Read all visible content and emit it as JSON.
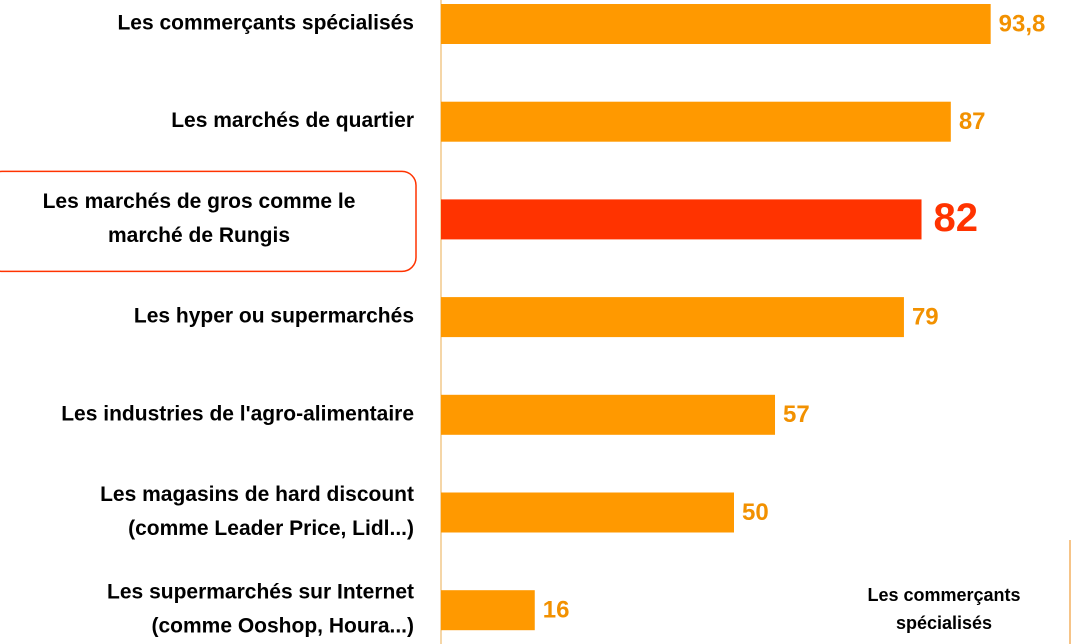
{
  "chart_data": {
    "type": "hbar",
    "categories": [
      [
        "Les commerçants spécialisés"
      ],
      [
        "Les marchés de quartier"
      ],
      [
        "Les marchés de gros comme le",
        "marché de Rungis"
      ],
      [
        "Les hyper ou supermarchés"
      ],
      [
        "Les industries de l'agro-alimentaire"
      ],
      [
        "Les magasins de hard discount",
        "(comme Leader Price, Lidl...)"
      ],
      [
        "Les supermarchés sur Internet",
        "(comme Ooshop, Houra...)"
      ]
    ],
    "values": [
      93.8,
      87,
      82,
      79,
      57,
      50,
      16
    ],
    "value_labels": [
      "93,8",
      "87",
      "82",
      "79",
      "57",
      "50",
      "16"
    ],
    "color": "#ff9900",
    "label_color": "#f29100",
    "highlight": 2,
    "highlight_color": "#ff3300",
    "xlim": [
      0,
      100
    ],
    "annotation": [
      "Les commerçants",
      "spécialisés"
    ]
  }
}
